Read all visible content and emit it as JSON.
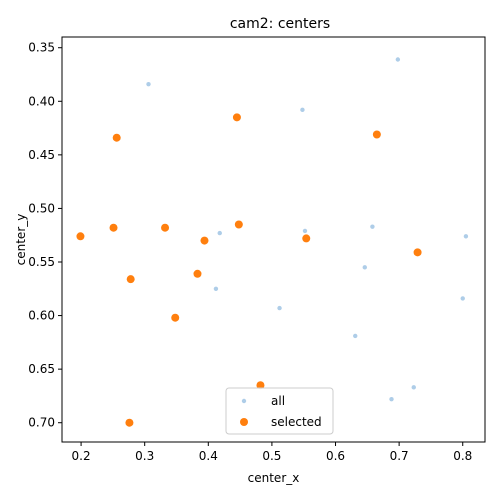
{
  "chart_data": {
    "type": "scatter",
    "title": "cam2: centers",
    "xlabel": "center_x",
    "ylabel": "center_y",
    "xlim": [
      0.17,
      0.835
    ],
    "ylim": [
      0.34,
      0.718
    ],
    "y_inverted": true,
    "grid": false,
    "legend_placement": "lower-center",
    "x_ticks": [
      "0.2",
      "0.3",
      "0.4",
      "0.5",
      "0.6",
      "0.7",
      "0.8"
    ],
    "y_ticks": [
      "0.35",
      "0.40",
      "0.45",
      "0.50",
      "0.55",
      "0.60",
      "0.65",
      "0.70"
    ],
    "series": [
      {
        "name": "all",
        "color": "#aecde8",
        "points": [
          [
            0.698,
            0.361
          ],
          [
            0.306,
            0.384
          ],
          [
            0.548,
            0.408
          ],
          [
            0.418,
            0.523
          ],
          [
            0.552,
            0.521
          ],
          [
            0.658,
            0.517
          ],
          [
            0.805,
            0.526
          ],
          [
            0.646,
            0.555
          ],
          [
            0.412,
            0.575
          ],
          [
            0.8,
            0.584
          ],
          [
            0.512,
            0.593
          ],
          [
            0.631,
            0.619
          ],
          [
            0.723,
            0.667
          ],
          [
            0.688,
            0.678
          ]
        ]
      },
      {
        "name": "selected",
        "color": "#ff7f0e",
        "points": [
          [
            0.445,
            0.415
          ],
          [
            0.256,
            0.434
          ],
          [
            0.665,
            0.431
          ],
          [
            0.448,
            0.515
          ],
          [
            0.199,
            0.526
          ],
          [
            0.251,
            0.518
          ],
          [
            0.332,
            0.518
          ],
          [
            0.394,
            0.53
          ],
          [
            0.554,
            0.528
          ],
          [
            0.729,
            0.541
          ],
          [
            0.278,
            0.566
          ],
          [
            0.383,
            0.561
          ],
          [
            0.348,
            0.602
          ],
          [
            0.482,
            0.665
          ],
          [
            0.276,
            0.7
          ]
        ]
      }
    ]
  }
}
